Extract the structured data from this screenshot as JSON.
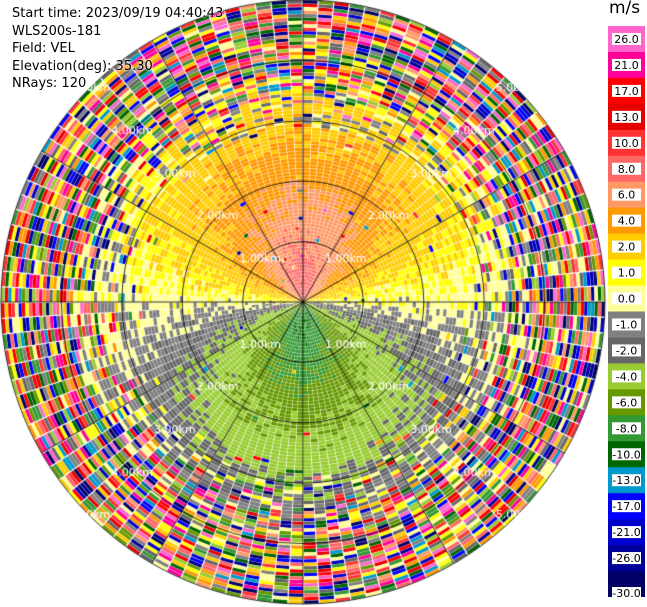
{
  "info": {
    "start_time": "Start time: 2023/09/19 04:40:43",
    "instrument": "WLS200s-181",
    "field": "Field: VEL",
    "elevation": "Elevation(deg): 35.30",
    "nrays": "NRays: 120"
  },
  "colorbar": {
    "unit": "m/s",
    "ticks": [
      "26.0",
      "21.0",
      "17.0",
      "13.0",
      "10.0",
      "8.0",
      "6.0",
      "4.0",
      "2.0",
      "1.0",
      "0.0",
      "-1.0",
      "-2.0",
      "-4.0",
      "-6.0",
      "-8.0",
      "-10.0",
      "-13.0",
      "-17.0",
      "-21.0",
      "-26.0",
      "-30.0"
    ],
    "colors": [
      "#ff66cc",
      "#ff0099",
      "#ff0000",
      "#e60000",
      "#ff3333",
      "#ff6666",
      "#ff9966",
      "#ff9900",
      "#ffcc00",
      "#ffff00",
      "#ffff99",
      "#808080",
      "#666666",
      "#99cc33",
      "#669900",
      "#339933",
      "#006600",
      "#0099cc",
      "#0000ff",
      "#0000cc",
      "#000099",
      "#000066"
    ]
  },
  "chart_data": {
    "type": "heatmap",
    "projection": "polar PPI",
    "field": "VEL",
    "unit": "m/s",
    "nrays": 120,
    "range_rings_km": [
      1.0,
      2.0,
      3.0,
      4.0,
      5.0
    ],
    "range_ring_label": "1.00km",
    "range_ring_labels": [
      "1.00km",
      "2.00km",
      "3.00km",
      "4.00km",
      "5.00km"
    ],
    "spoke_angles_deg": [
      0,
      30,
      60,
      90,
      120,
      150,
      180,
      210,
      240,
      270,
      300,
      330
    ],
    "pattern": {
      "north_upper_sector": "positive velocities (2 to 8 m/s), strongest near center",
      "south_lower_sector": "negative velocities (-2 to -6 m/s), strongest near center",
      "east_west_band": "near zero (0 to -1 m/s)",
      "outer_ranges": "noisy, all colors"
    }
  }
}
